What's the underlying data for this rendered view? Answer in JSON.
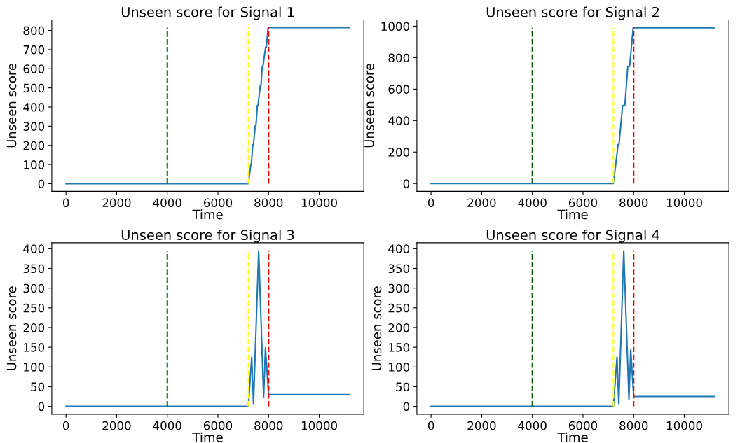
{
  "chart_data": [
    {
      "type": "line",
      "title": "Unseen score for Signal 1",
      "xlabel": "Time",
      "ylabel": "Unseen score",
      "xlim": [
        -560,
        11760
      ],
      "ylim": [
        -40,
        855
      ],
      "xticks": [
        0,
        2000,
        4000,
        6000,
        8000,
        10000
      ],
      "yticks": [
        0,
        100,
        200,
        300,
        400,
        500,
        600,
        700,
        800
      ],
      "series": [
        {
          "color": "#1f77b4",
          "x": [
            0,
            7200,
            7298,
            7316,
            7378,
            7404,
            7476,
            7502,
            7556,
            7582,
            7671,
            7698,
            7751,
            7778,
            7884,
            7911,
            7982,
            11200
          ],
          "values": [
            0,
            0,
            98,
            98,
            204,
            204,
            304,
            304,
            408,
            408,
            511,
            511,
            613,
            613,
            714,
            714,
            815,
            815
          ]
        }
      ],
      "ref_lines": [
        {
          "axis": "x",
          "value": 4000,
          "color": "#006400",
          "line_style": "dashed"
        },
        {
          "axis": "x",
          "value": 7200,
          "color": "#ffff00",
          "line_style": "dashed"
        },
        {
          "axis": "x",
          "value": 8000,
          "color": "#ff0000",
          "line_style": "dashed"
        }
      ]
    },
    {
      "type": "line",
      "title": "Unseen score for Signal 2",
      "xlabel": "Time",
      "ylabel": "Unseen score",
      "xlim": [
        -560,
        11760
      ],
      "ylim": [
        -50,
        1040
      ],
      "xticks": [
        0,
        2000,
        4000,
        6000,
        8000,
        10000
      ],
      "yticks": [
        0,
        200,
        400,
        600,
        800,
        1000
      ],
      "series": [
        {
          "color": "#1f77b4",
          "x": [
            0,
            7200,
            7387,
            7422,
            7564,
            7653,
            7769,
            7840,
            7982,
            11200
          ],
          "values": [
            0,
            0,
            248,
            248,
            496,
            496,
            745,
            745,
            990,
            990
          ]
        }
      ],
      "ref_lines": [
        {
          "axis": "x",
          "value": 4000,
          "color": "#006400",
          "line_style": "dashed"
        },
        {
          "axis": "x",
          "value": 7200,
          "color": "#ffff00",
          "line_style": "dashed"
        },
        {
          "axis": "x",
          "value": 8000,
          "color": "#ff0000",
          "line_style": "dashed"
        }
      ]
    },
    {
      "type": "line",
      "title": "Unseen score for Signal 3",
      "xlabel": "Time",
      "ylabel": "Unseen score",
      "xlim": [
        -560,
        11760
      ],
      "ylim": [
        -20,
        415
      ],
      "xticks": [
        0,
        2000,
        4000,
        6000,
        8000,
        10000
      ],
      "yticks": [
        0,
        50,
        100,
        150,
        200,
        250,
        300,
        350,
        400
      ],
      "series": [
        {
          "color": "#1f77b4",
          "x": [
            0,
            7200,
            7333,
            7404,
            7609,
            7804,
            7876,
            8000,
            11200
          ],
          "values": [
            0,
            0,
            125,
            7,
            395,
            23,
            149,
            30,
            30
          ]
        }
      ],
      "ref_lines": [
        {
          "axis": "x",
          "value": 4000,
          "color": "#006400",
          "line_style": "dashed"
        },
        {
          "axis": "x",
          "value": 7200,
          "color": "#ffff00",
          "line_style": "dashed"
        },
        {
          "axis": "x",
          "value": 8000,
          "color": "#ff0000",
          "line_style": "dashed"
        }
      ]
    },
    {
      "type": "line",
      "title": "Unseen score for Signal 4",
      "xlabel": "Time",
      "ylabel": "Unseen score",
      "xlim": [
        -560,
        11760
      ],
      "ylim": [
        -20,
        415
      ],
      "xticks": [
        0,
        2000,
        4000,
        6000,
        8000,
        10000
      ],
      "yticks": [
        0,
        50,
        100,
        150,
        200,
        250,
        300,
        350,
        400
      ],
      "series": [
        {
          "color": "#1f77b4",
          "x": [
            0,
            7200,
            7342,
            7413,
            7609,
            7813,
            7884,
            8000,
            11200
          ],
          "values": [
            0,
            0,
            125,
            7,
            395,
            18,
            145,
            25,
            25
          ]
        }
      ],
      "ref_lines": [
        {
          "axis": "x",
          "value": 4000,
          "color": "#006400",
          "line_style": "dashed"
        },
        {
          "axis": "x",
          "value": 7200,
          "color": "#ffff00",
          "line_style": "dashed"
        },
        {
          "axis": "x",
          "value": 8000,
          "color": "#ff0000",
          "line_style": "dashed"
        }
      ]
    }
  ]
}
